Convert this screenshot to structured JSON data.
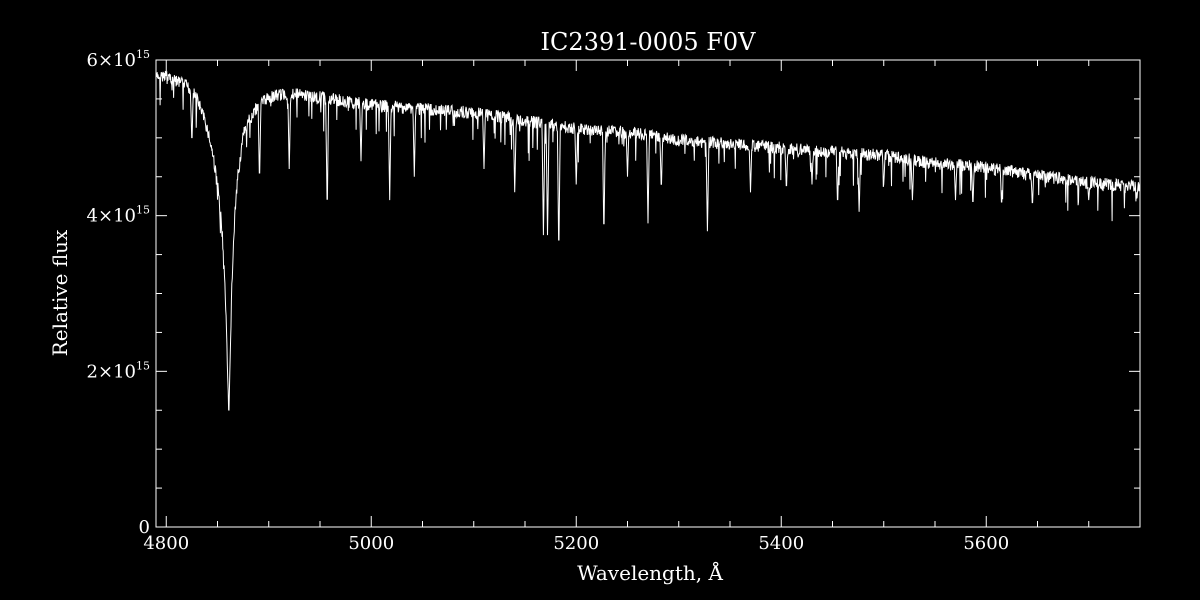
{
  "chart_data": {
    "type": "line",
    "title": "IC2391-0005  F0V",
    "xlabel": "Wavelength, Å",
    "ylabel": "Relative flux",
    "xlim": [
      4790,
      5750
    ],
    "ylim": [
      0,
      6000000000000000.0
    ],
    "grid": false,
    "colors": {
      "background": "#000000",
      "foreground": "#ffffff"
    },
    "x_ticks": [
      {
        "value": 4800,
        "label": "4800"
      },
      {
        "value": 5000,
        "label": "5000"
      },
      {
        "value": 5200,
        "label": "5200"
      },
      {
        "value": 5400,
        "label": "5400"
      },
      {
        "value": 5600,
        "label": "5600"
      }
    ],
    "y_ticks": [
      {
        "value": 0,
        "mant": "0",
        "exp": ""
      },
      {
        "value": 2000000000000000.0,
        "mant": "2×10",
        "exp": "15"
      },
      {
        "value": 4000000000000000.0,
        "mant": "4×10",
        "exp": "15"
      },
      {
        "value": 6000000000000000.0,
        "mant": "6×10",
        "exp": "15"
      }
    ],
    "x_minor_step": 50,
    "y_minor_step": 500000000000000.0,
    "series": [
      {
        "x": [
          4790,
          4800,
          4810,
          4820,
          4830,
          4840,
          4845,
          4850,
          4853,
          4856,
          4858,
          4860,
          4861,
          4862,
          4864,
          4867,
          4870,
          4875,
          4880,
          4890,
          4900,
          4920,
          4950,
          5000,
          5050,
          5100,
          5150,
          5200,
          5250,
          5300,
          5350,
          5400,
          5450,
          5500,
          5550,
          5600,
          5650,
          5700,
          5750
        ],
        "y": [
          5850000000000000.0,
          5900000000000000.0,
          5800000000000000.0,
          5750000000000000.0,
          5600000000000000.0,
          5200000000000000.0,
          4900000000000000.0,
          4500000000000000.0,
          4100000000000000.0,
          3600000000000000.0,
          2900000000000000.0,
          2000000000000000.0,
          1400000000000000.0,
          2000000000000000.0,
          3200000000000000.0,
          4100000000000000.0,
          4600000000000000.0,
          5100000000000000.0,
          5300000000000000.0,
          5500000000000000.0,
          5600000000000000.0,
          5650000000000000.0,
          5600000000000000.0,
          5500000000000000.0,
          5450000000000000.0,
          5400000000000000.0,
          5300000000000000.0,
          5200000000000000.0,
          5150000000000000.0,
          5050000000000000.0,
          5000000000000000.0,
          4950000000000000.0,
          4900000000000000.0,
          4850000000000000.0,
          4750000000000000.0,
          4700000000000000.0,
          4600000000000000.0,
          4500000000000000.0,
          4450000000000000.0
        ]
      }
    ],
    "absorption_lines": [
      {
        "x": 4825,
        "y": 4900000000000000.0
      },
      {
        "x": 4891,
        "y": 4400000000000000.0
      },
      {
        "x": 4920,
        "y": 4600000000000000.0
      },
      {
        "x": 4957,
        "y": 4000000000000000.0
      },
      {
        "x": 4990,
        "y": 4700000000000000.0
      },
      {
        "x": 5018,
        "y": 4200000000000000.0
      },
      {
        "x": 5042,
        "y": 4500000000000000.0
      },
      {
        "x": 5110,
        "y": 4600000000000000.0
      },
      {
        "x": 5140,
        "y": 4300000000000000.0
      },
      {
        "x": 5168,
        "y": 3750000000000000.0
      },
      {
        "x": 5172,
        "y": 3750000000000000.0
      },
      {
        "x": 5183,
        "y": 3450000000000000.0
      },
      {
        "x": 5200,
        "y": 4400000000000000.0
      },
      {
        "x": 5227,
        "y": 3700000000000000.0
      },
      {
        "x": 5250,
        "y": 4500000000000000.0
      },
      {
        "x": 5270,
        "y": 3900000000000000.0
      },
      {
        "x": 5283,
        "y": 4300000000000000.0
      },
      {
        "x": 5328,
        "y": 3800000000000000.0
      },
      {
        "x": 5370,
        "y": 4300000000000000.0
      },
      {
        "x": 5405,
        "y": 4300000000000000.0
      },
      {
        "x": 5430,
        "y": 4400000000000000.0
      },
      {
        "x": 5455,
        "y": 4100000000000000.0
      },
      {
        "x": 5476,
        "y": 4050000000000000.0
      },
      {
        "x": 5500,
        "y": 4400000000000000.0
      },
      {
        "x": 5528,
        "y": 4200000000000000.0
      },
      {
        "x": 5570,
        "y": 4200000000000000.0
      },
      {
        "x": 5587,
        "y": 4100000000000000.0
      },
      {
        "x": 5615,
        "y": 4100000000000000.0
      },
      {
        "x": 5645,
        "y": 4100000000000000.0
      },
      {
        "x": 5700,
        "y": 4200000000000000.0
      },
      {
        "x": 5747,
        "y": 4200000000000000.0
      }
    ]
  }
}
